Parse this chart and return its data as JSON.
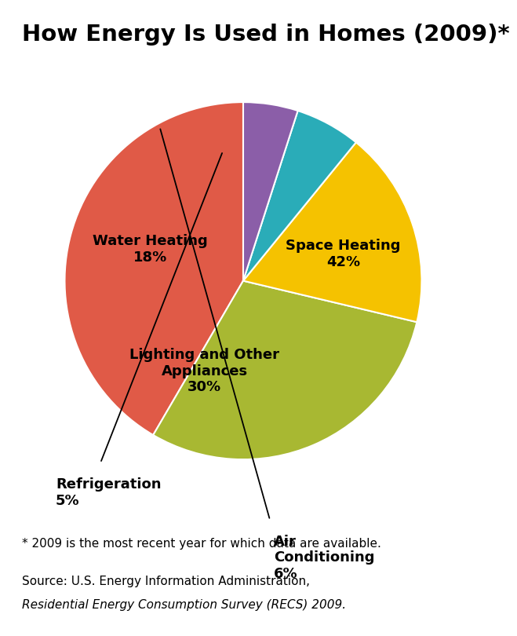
{
  "title": "How Energy Is Used in Homes (2009)*",
  "title_fontsize": 21,
  "title_fontweight": "bold",
  "slices": [
    {
      "label": "Space Heating\n42%",
      "value": 42,
      "color": "#E05A47"
    },
    {
      "label": "Lighting and Other\nAppliances\n30%",
      "value": 30,
      "color": "#A8B832"
    },
    {
      "label": "Water Heating\n18%",
      "value": 18,
      "color": "#F5C200"
    },
    {
      "label": "Air\nConditioning\n6%",
      "value": 6,
      "color": "#2AACB8"
    },
    {
      "label": "Refrigeration\n5%",
      "value": 5,
      "color": "#8B5EA8"
    }
  ],
  "footnote": "* 2009 is the most recent year for which data are available.",
  "source_text1": "Source: U.S. Energy Information Administration, ",
  "source_text2": "Residential",
  "source_text3": "\nEnergy Consumption Survey (RECS) 2009.",
  "footnote_fontsize": 11,
  "source_fontsize": 11,
  "label_fontsize": 13,
  "background_color": "#FFFFFF",
  "startangle": 90
}
